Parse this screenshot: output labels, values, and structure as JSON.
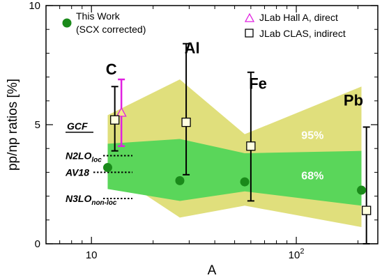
{
  "chart_data": {
    "type": "scatter",
    "xlabel": "A",
    "ylabel": "pp/np ratios [%]",
    "x_scale": "log",
    "xlim": [
      6,
      250
    ],
    "ylim": [
      0,
      10
    ],
    "x_ticks": [
      {
        "value": 10,
        "label": "10"
      },
      {
        "value": 100,
        "label": "10",
        "exp": "2"
      }
    ],
    "y_ticks": [
      {
        "value": 0,
        "label": "0"
      },
      {
        "value": 5,
        "label": "5"
      },
      {
        "value": 10,
        "label": "10"
      }
    ],
    "bands": [
      {
        "name": "95%",
        "color": "#e0df7c",
        "x": [
          12,
          27,
          56,
          208
        ],
        "upper": [
          5.4,
          6.9,
          4.6,
          6.6
        ],
        "lower": [
          3.1,
          1.1,
          1.6,
          0.7
        ],
        "label_x": 120,
        "label_y": 4.4
      },
      {
        "name": "68%",
        "color": "#5ad65a",
        "x": [
          12,
          27,
          56,
          208
        ],
        "upper": [
          4.2,
          4.4,
          3.8,
          3.9
        ],
        "lower": [
          2.3,
          1.8,
          2.2,
          1.6
        ],
        "label_x": 120,
        "label_y": 2.7
      }
    ],
    "series": [
      {
        "name": "This Work",
        "name_line2": "(SCX corrected)",
        "marker": "circle",
        "color": "#1a8a1a",
        "points": [
          {
            "x": 12,
            "y": 3.2
          },
          {
            "x": 27,
            "y": 2.65
          },
          {
            "x": 56,
            "y": 2.6
          },
          {
            "x": 208,
            "y": 2.25
          }
        ]
      },
      {
        "name": "JLab Hall A, direct",
        "marker": "triangle",
        "color": "#e020e0",
        "points": [
          {
            "x": 14,
            "y": 5.5,
            "err_low": 4.1,
            "err_high": 6.9
          }
        ]
      },
      {
        "name": "JLab CLAS, indirect",
        "marker": "square",
        "color": "#000000",
        "points": [
          {
            "x": 13,
            "y": 5.2,
            "err_low": 3.9,
            "err_high": 6.6
          },
          {
            "x": 29,
            "y": 5.1,
            "err_low": 2.9,
            "err_high": 8.4
          },
          {
            "x": 60,
            "y": 4.1,
            "err_low": 1.8,
            "err_high": 7.2
          },
          {
            "x": 220,
            "y": 1.4,
            "err_low": 0.0,
            "err_high": 4.9
          }
        ]
      }
    ],
    "nucleus_labels": [
      {
        "text": "C",
        "x": 12.5,
        "y": 7.1
      },
      {
        "text": "Al",
        "x": 31,
        "y": 8.0
      },
      {
        "text": "Fe",
        "x": 65,
        "y": 6.5
      },
      {
        "text": "Pb",
        "x": 190,
        "y": 5.8
      }
    ],
    "gcf": {
      "title": "GCF",
      "models": [
        {
          "name": "N2LO",
          "sub": "loc",
          "y": 3.7
        },
        {
          "name": "AV18",
          "sub": "",
          "y": 3.0
        },
        {
          "name": "N3LO",
          "sub": "non-loc",
          "y": 1.9
        }
      ]
    }
  }
}
